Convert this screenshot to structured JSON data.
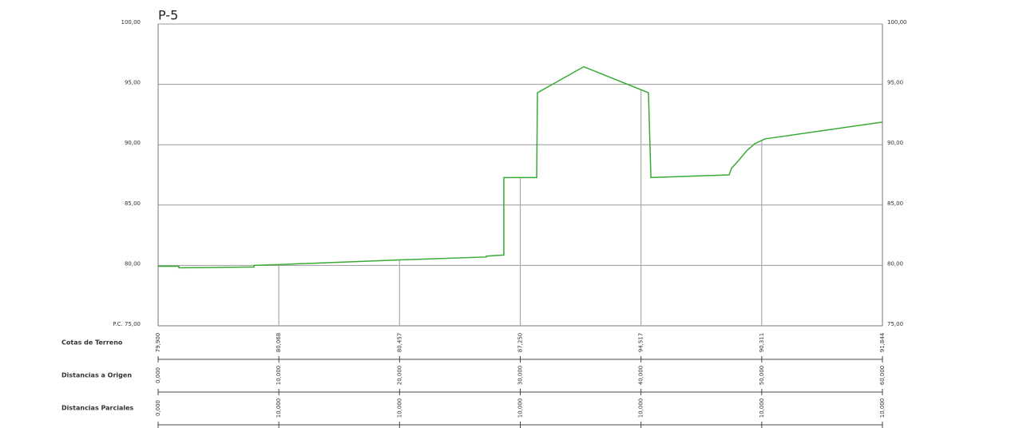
{
  "chart_data": {
    "type": "line",
    "title": "P-5",
    "x": [
      0,
      1.72,
      1.72,
      7.94,
      7.94,
      10,
      20,
      27.19,
      27.19,
      28.64,
      28.64,
      31.36,
      31.42,
      35.26,
      40.62,
      40.82,
      47.3,
      47.5,
      48.09,
      48.76,
      49.42,
      50.27,
      60
    ],
    "values": [
      79.93,
      79.93,
      79.8,
      79.87,
      80.0,
      80.07,
      80.46,
      80.7,
      80.77,
      80.86,
      87.28,
      87.28,
      94.3,
      96.46,
      94.3,
      87.28,
      87.5,
      88.05,
      88.7,
      89.5,
      90.08,
      90.48,
      91.87
    ],
    "color": "#3aaa35",
    "xlim": [
      0,
      60
    ],
    "ylim": [
      75,
      100
    ],
    "yticks": [
      {
        "value": 75,
        "label": "P.C. 75,00"
      },
      {
        "value": 80,
        "label": "80,00"
      },
      {
        "value": 85,
        "label": "85,00"
      },
      {
        "value": 90,
        "label": "90,00"
      },
      {
        "value": 95,
        "label": "95,00"
      },
      {
        "value": 100,
        "label": "100,00"
      }
    ],
    "y2lim": [
      75,
      100
    ],
    "y2ticks": [
      {
        "value": 75,
        "label": "75,00"
      },
      {
        "value": 80,
        "label": "80,00"
      },
      {
        "value": 85,
        "label": "85,00"
      },
      {
        "value": 90,
        "label": "90,00"
      },
      {
        "value": 95,
        "label": "95,00"
      },
      {
        "value": 100,
        "label": "100,00"
      }
    ],
    "grid": true,
    "rows": [
      {
        "name": "Cotas de Terreno",
        "values": [
          79.9,
          80.068,
          80.457,
          87.25,
          94.517,
          90.311,
          91.844
        ],
        "value_labels": [
          "79,900",
          "80,068",
          "80,457",
          "87,250",
          "94,517",
          "90,311",
          "91,844"
        ]
      },
      {
        "name": "Distancias a Origen",
        "values": [
          0,
          10,
          20,
          30,
          40,
          50,
          60
        ],
        "value_labels": [
          "0,000",
          "10,000",
          "20,000",
          "30,000",
          "40,000",
          "50,000",
          "60,000"
        ]
      },
      {
        "name": "Distancias Parciales",
        "values": [
          0,
          10,
          10,
          10,
          10,
          10,
          10
        ],
        "value_labels": [
          "0,000",
          "10,000",
          "10,000",
          "10,000",
          "10,000",
          "10,000",
          "10,000"
        ]
      }
    ]
  }
}
